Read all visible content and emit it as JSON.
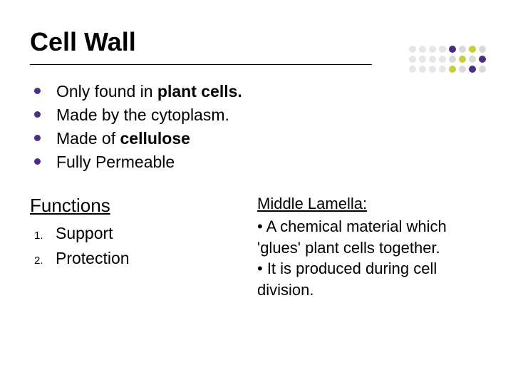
{
  "title": "Cell Wall",
  "bullets": [
    {
      "prefix": "Only found in ",
      "bold": "plant cells.",
      "suffix": ""
    },
    {
      "prefix": "Made by the cytoplasm.",
      "bold": "",
      "suffix": ""
    },
    {
      "prefix": "Made of ",
      "bold": "cellulose",
      "suffix": ""
    },
    {
      "prefix": "Fully Permeable",
      "bold": "",
      "suffix": ""
    }
  ],
  "functions": {
    "heading": "Functions",
    "items": [
      "Support",
      "Protection"
    ]
  },
  "middle_lamella": {
    "heading": "Middle Lamella: ",
    "points": [
      "• A chemical material which 'glues' plant cells together.",
      "• It is produced during cell division."
    ]
  },
  "decor": {
    "rows": 3,
    "cols": 8,
    "colors": [
      [
        "#e6e6e6",
        "#e6e6e6",
        "#e6e6e6",
        "#e6e6e6",
        "#4b2e83",
        "#d9d9d9",
        "#c7ce3a",
        "#d9d9d9"
      ],
      [
        "#e6e6e6",
        "#e6e6e6",
        "#e6e6e6",
        "#e6e6e6",
        "#d9d9d9",
        "#c7ce3a",
        "#d9d9d9",
        "#4b2e83"
      ],
      [
        "#e6e6e6",
        "#e6e6e6",
        "#e6e6e6",
        "#e6e6e6",
        "#c7ce3a",
        "#d9d9d9",
        "#4b2e83",
        "#d9d9d9"
      ]
    ]
  },
  "style": {
    "bullet_color": "#4b2e83",
    "title_fontsize": 36,
    "body_fontsize": 23
  }
}
